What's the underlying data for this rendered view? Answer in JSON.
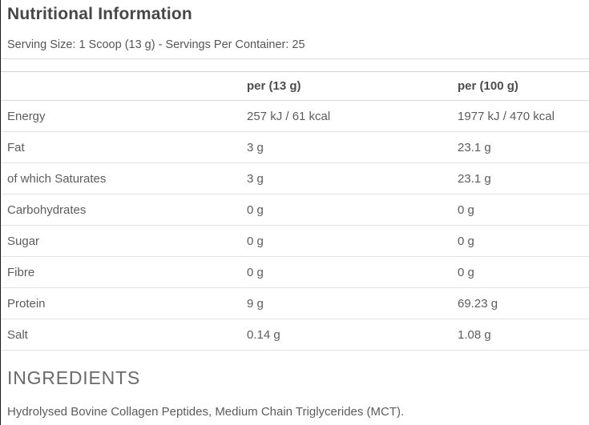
{
  "page": {
    "title": "Nutritional Information",
    "serving_info": "Serving Size: 1 Scoop (13 g) - Servings Per Container: 25"
  },
  "table": {
    "columns": {
      "nutrient": "",
      "per_serving": "per (13 g)",
      "per_100g": "per (100 g)"
    },
    "rows": [
      {
        "label": "Energy",
        "per_serving": "257 kJ / 61 kcal",
        "per_100g": "1977 kJ / 470 kcal"
      },
      {
        "label": "Fat",
        "per_serving": "3 g",
        "per_100g": "23.1 g"
      },
      {
        "label": "of which Saturates",
        "per_serving": "3 g",
        "per_100g": "23.1 g"
      },
      {
        "label": "Carbohydrates",
        "per_serving": "0 g",
        "per_100g": "0 g"
      },
      {
        "label": "Sugar",
        "per_serving": "0 g",
        "per_100g": "0 g"
      },
      {
        "label": "Fibre",
        "per_serving": "0 g",
        "per_100g": "0 g"
      },
      {
        "label": "Protein",
        "per_serving": "9 g",
        "per_100g": "69.23 g"
      },
      {
        "label": "Salt",
        "per_serving": "0.14 g",
        "per_100g": "1.08 g"
      }
    ]
  },
  "ingredients": {
    "heading": "INGREDIENTS",
    "text": "Hydrolysed Bovine Collagen Peptides, Medium Chain Triglycerides (MCT)."
  },
  "colors": {
    "background": "#ffffff",
    "title_text": "#474747",
    "body_text": "#5c5c5c",
    "header_text": "#4d4d4d",
    "row_divider": "#e3e3e3"
  }
}
